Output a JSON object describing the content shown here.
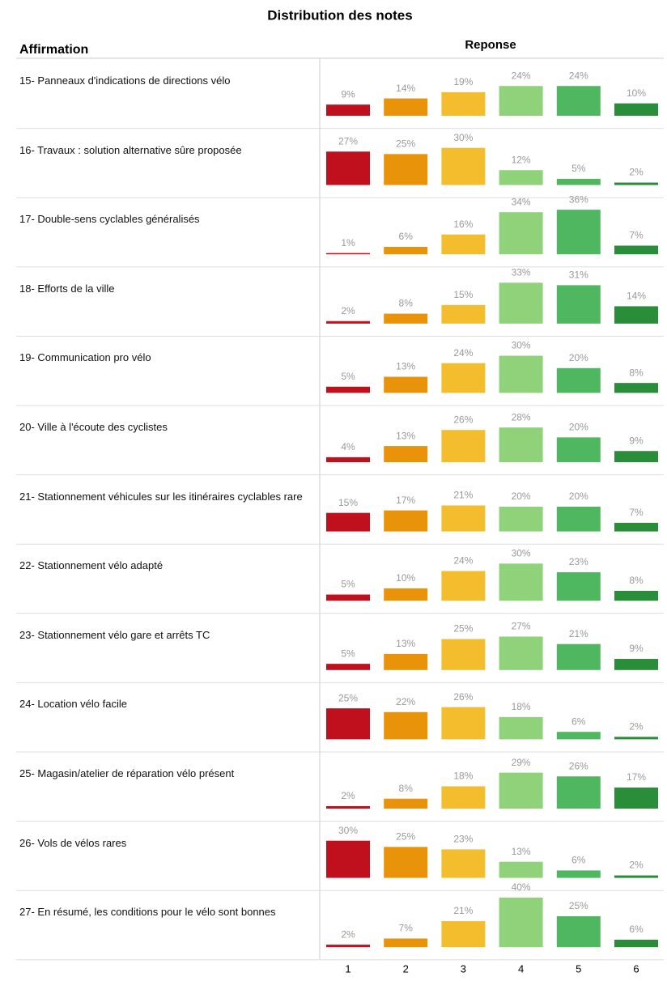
{
  "chart_data": {
    "type": "bar",
    "title": "Distribution des notes",
    "row_header": "Affirmation",
    "column_header": "Reponse",
    "categories": [
      1,
      2,
      3,
      4,
      5,
      6
    ],
    "colors": [
      "#c0101e",
      "#e8930a",
      "#f3bd2e",
      "#8fd27a",
      "#4fb75f",
      "#2a8d3a"
    ],
    "rows": [
      {
        "label": "15- Panneaux d'indications de directions vélo",
        "values": [
          9,
          14,
          19,
          24,
          24,
          10
        ],
        "value_labels": [
          "9%",
          "14%",
          "19%",
          "24%",
          "24%",
          "10%"
        ]
      },
      {
        "label": "16- Travaux : solution alternative sûre proposée",
        "values": [
          27,
          25,
          30,
          12,
          5,
          2
        ],
        "value_labels": [
          "27%",
          "25%",
          "30%",
          "12%",
          "5%",
          "2%"
        ]
      },
      {
        "label": "17- Double-sens cyclables généralisés",
        "values": [
          1,
          6,
          16,
          34,
          36,
          7
        ],
        "value_labels": [
          "1%",
          "6%",
          "16%",
          "34%",
          "36%",
          "7%"
        ]
      },
      {
        "label": "18- Efforts de la ville",
        "values": [
          2,
          8,
          15,
          33,
          31,
          14
        ],
        "value_labels": [
          "2%",
          "8%",
          "15%",
          "33%",
          "31%",
          "14%"
        ]
      },
      {
        "label": "19- Communication pro vélo",
        "values": [
          5,
          13,
          24,
          30,
          20,
          8
        ],
        "value_labels": [
          "5%",
          "13%",
          "24%",
          "30%",
          "20%",
          "8%"
        ]
      },
      {
        "label": "20- Ville à l'écoute des cyclistes",
        "values": [
          4,
          13,
          26,
          28,
          20,
          9
        ],
        "value_labels": [
          "4%",
          "13%",
          "26%",
          "28%",
          "20%",
          "9%"
        ]
      },
      {
        "label": "21- Stationnement véhicules sur les itinéraires cyclables rare",
        "values": [
          15,
          17,
          21,
          20,
          20,
          7
        ],
        "value_labels": [
          "15%",
          "17%",
          "21%",
          "20%",
          "20%",
          "7%"
        ]
      },
      {
        "label": "22- Stationnement vélo adapté",
        "values": [
          5,
          10,
          24,
          30,
          23,
          8
        ],
        "value_labels": [
          "5%",
          "10%",
          "24%",
          "30%",
          "23%",
          "8%"
        ]
      },
      {
        "label": "23- Stationnement vélo gare et arrêts TC",
        "values": [
          5,
          13,
          25,
          27,
          21,
          9
        ],
        "value_labels": [
          "5%",
          "13%",
          "25%",
          "27%",
          "21%",
          "9%"
        ]
      },
      {
        "label": "24- Location vélo facile",
        "values": [
          25,
          22,
          26,
          18,
          6,
          2
        ],
        "value_labels": [
          "25%",
          "22%",
          "26%",
          "18%",
          "6%",
          "2%"
        ]
      },
      {
        "label": "25- Magasin/atelier de réparation vélo présent",
        "values": [
          2,
          8,
          18,
          29,
          26,
          17
        ],
        "value_labels": [
          "2%",
          "8%",
          "18%",
          "29%",
          "26%",
          "17%"
        ]
      },
      {
        "label": "26- Vols de vélos rares",
        "values": [
          30,
          25,
          23,
          13,
          6,
          2
        ],
        "value_labels": [
          "30%",
          "25%",
          "23%",
          "13%",
          "6%",
          "2%"
        ]
      },
      {
        "label": "27- En résumé, les conditions pour le vélo sont bonnes",
        "values": [
          2,
          7,
          21,
          40,
          25,
          6
        ],
        "value_labels": [
          "2%",
          "7%",
          "21%",
          "40%",
          "25%",
          "6%"
        ]
      }
    ]
  }
}
